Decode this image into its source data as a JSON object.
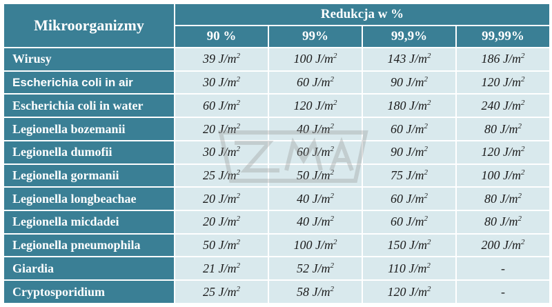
{
  "header": {
    "col_name": "Mikroorganizmy",
    "group": "Redukcja w %",
    "columns": [
      "90 %",
      "99%",
      "99,9%",
      "99,99%"
    ]
  },
  "unit": "J/m",
  "unit_exp": "2",
  "rows": [
    {
      "name": "Wirusy",
      "sans": false,
      "values": [
        "39",
        "100",
        "143",
        "186"
      ]
    },
    {
      "name": "Escherichia coli in air",
      "sans": true,
      "values": [
        "30",
        "60",
        "90",
        "120"
      ]
    },
    {
      "name": "Escherichia coli in water",
      "sans": false,
      "values": [
        "60",
        "120",
        "180",
        "240"
      ]
    },
    {
      "name": "Legionella bozemanii",
      "sans": false,
      "values": [
        "20",
        "40",
        "60",
        "80"
      ]
    },
    {
      "name": "Legionella dumofii",
      "sans": false,
      "values": [
        "30",
        "60",
        "90",
        "120"
      ]
    },
    {
      "name": "Legionella gormanii",
      "sans": false,
      "values": [
        "25",
        "50",
        "75",
        "100"
      ]
    },
    {
      "name": "Legionella longbeachae",
      "sans": false,
      "values": [
        "20",
        "40",
        "60",
        "80"
      ]
    },
    {
      "name": "Legionella micdadei",
      "sans": false,
      "values": [
        "20",
        "40",
        "60",
        "80"
      ]
    },
    {
      "name": "Legionella pneumophila",
      "sans": false,
      "values": [
        "50",
        "100",
        "150",
        "200"
      ]
    },
    {
      "name": "Giardia",
      "sans": false,
      "values": [
        "21",
        "52",
        "110",
        "-"
      ]
    },
    {
      "name": "Cryptosporidium",
      "sans": false,
      "values": [
        "25",
        "58",
        "120",
        "-"
      ]
    }
  ],
  "colors": {
    "header_bg": "#3a7f95",
    "cell_bg": "#d9e9ed",
    "border": "#ffffff"
  },
  "watermark_icon": "logo-watermark"
}
